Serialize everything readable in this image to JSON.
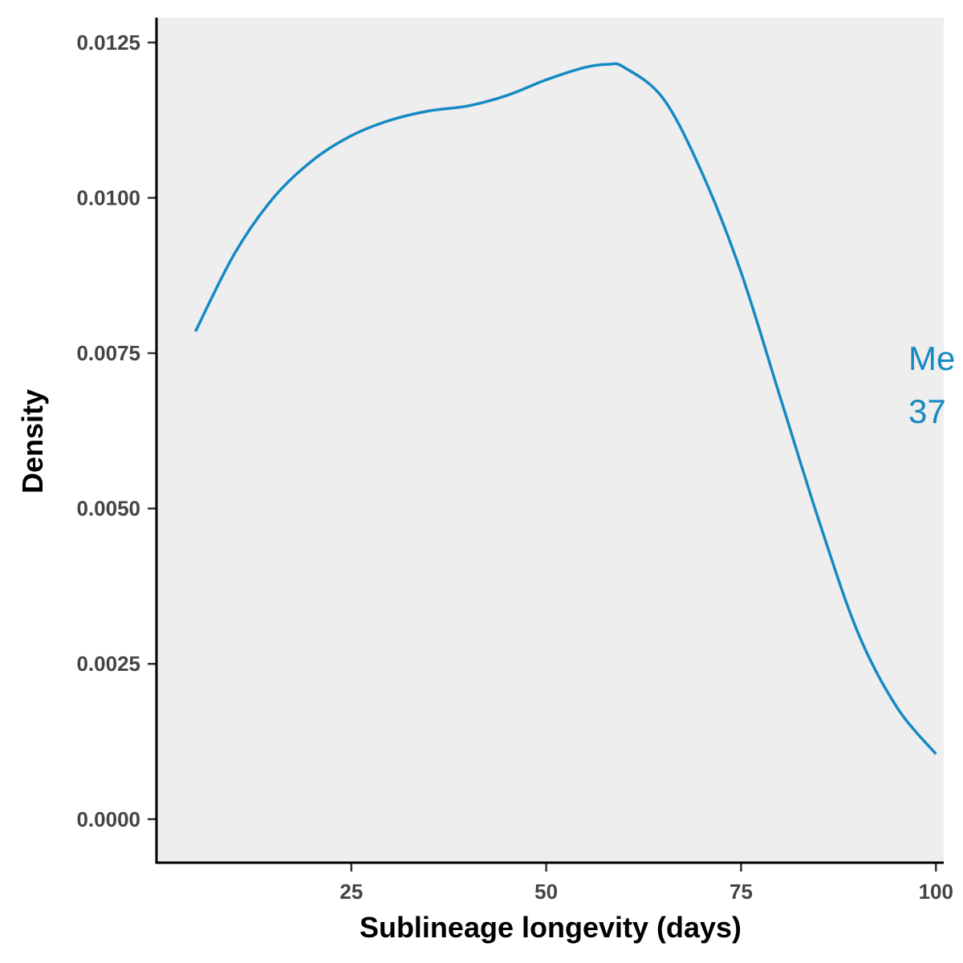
{
  "chart_data": {
    "type": "line",
    "title": "",
    "xlabel": "Sublineage longevity (days)",
    "ylabel": "Density",
    "xlim": [
      0,
      101
    ],
    "ylim": [
      -0.0007,
      0.0129
    ],
    "x_ticks": [
      25,
      50,
      75,
      100
    ],
    "x_tick_labels": [
      "25",
      "50",
      "75",
      "100"
    ],
    "y_ticks": [
      0.0,
      0.0025,
      0.005,
      0.0075,
      0.01,
      0.0125
    ],
    "y_tick_labels": [
      "0.0000",
      "0.0025",
      "0.0050",
      "0.0075",
      "0.0100",
      "0.0125"
    ],
    "grid": false,
    "legend": "none",
    "panel_background": "#eeeeee",
    "series": [
      {
        "color": "#1589c4",
        "x": [
          5,
          10,
          15,
          20,
          25,
          30,
          35,
          40,
          45,
          50,
          55,
          58,
          60,
          65,
          70,
          75,
          80,
          85,
          90,
          95,
          100
        ],
        "y": [
          0.00785,
          0.0091,
          0.01,
          0.0106,
          0.011,
          0.01125,
          0.0114,
          0.01148,
          0.01165,
          0.0119,
          0.0121,
          0.01215,
          0.0121,
          0.0116,
          0.0104,
          0.0088,
          0.0068,
          0.0048,
          0.003,
          0.0018,
          0.00105
        ]
      }
    ],
    "annotations": [
      {
        "text_line1": "Me",
        "text_line2": "37",
        "color": "#1589c4"
      }
    ]
  }
}
